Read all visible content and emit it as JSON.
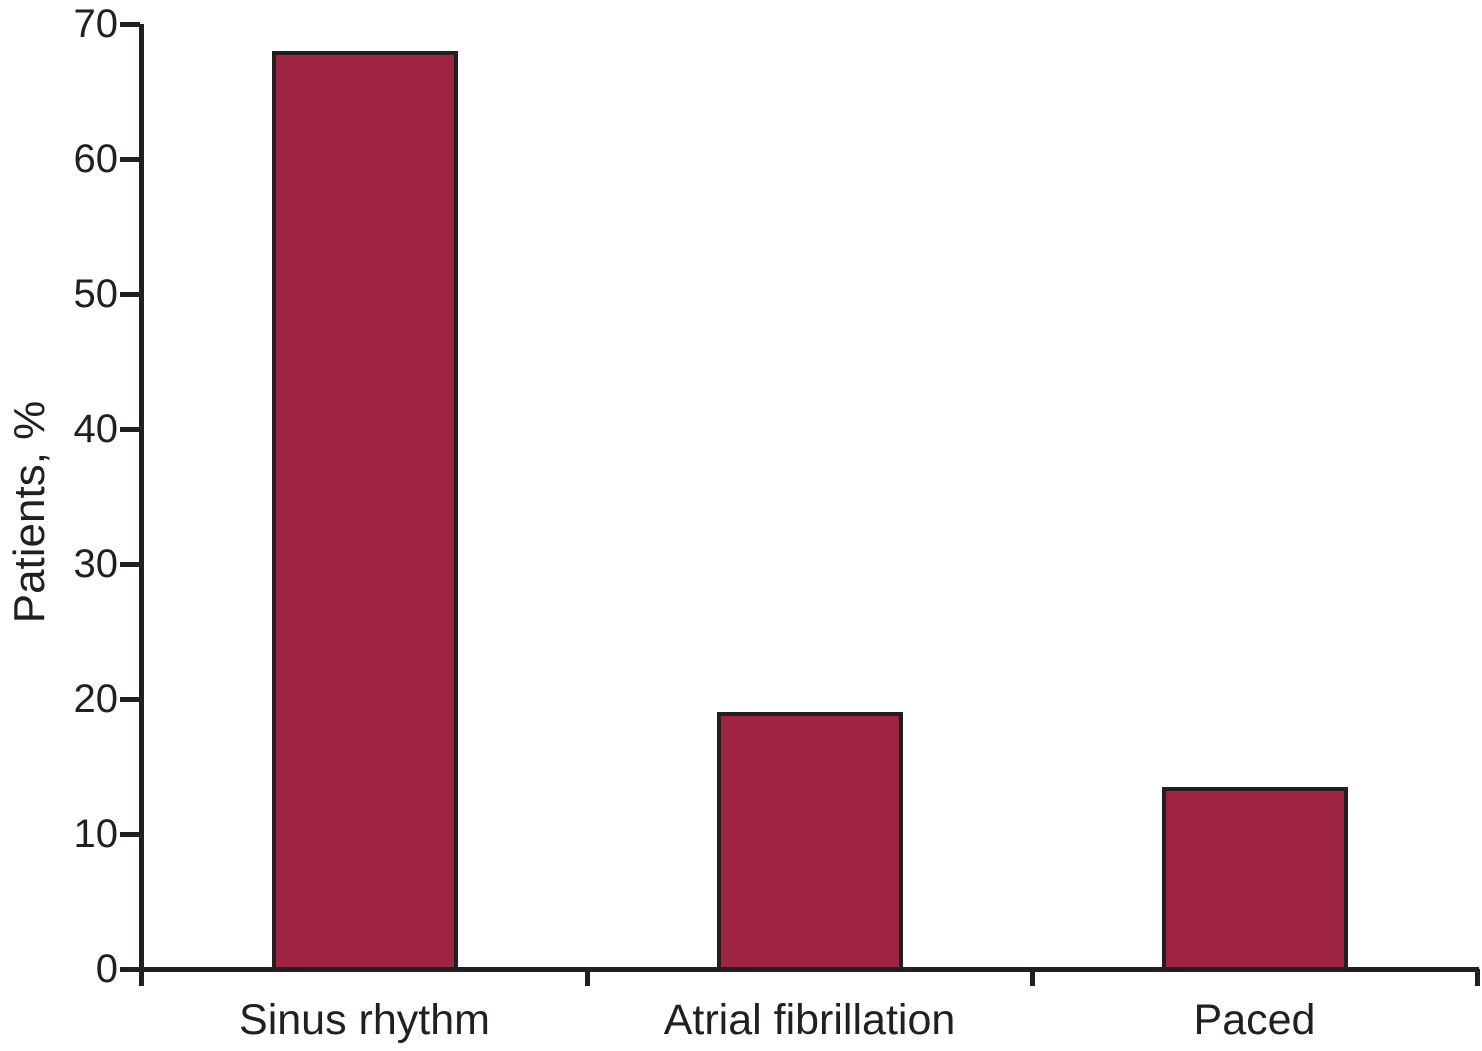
{
  "chart_data": {
    "type": "bar",
    "categories": [
      "Sinus rhythm",
      "Atrial fibrillation",
      "Paced"
    ],
    "values": [
      68,
      19,
      13.5
    ],
    "title": "",
    "xlabel": "",
    "ylabel": "Patients, %",
    "ylim": [
      0,
      70
    ],
    "yticks": [
      0,
      10,
      20,
      30,
      40,
      50,
      60,
      70
    ],
    "grid": false,
    "legend": "none",
    "bar_fill_color": "#9E2441",
    "bar_border_color": "#231F20",
    "axis_color": "#231F20"
  }
}
